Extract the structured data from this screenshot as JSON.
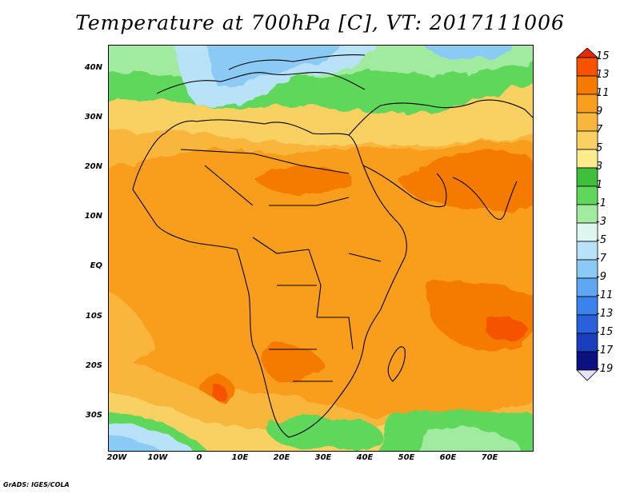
{
  "title": "Temperature at 700hPa [C], VT: 2017111006",
  "credit": "GrADS: IGES/COLA",
  "lat_labels": [
    "40N",
    "30N",
    "20N",
    "10N",
    "EQ",
    "10S",
    "20S",
    "30S"
  ],
  "lon_labels": [
    "20W",
    "10W",
    "0",
    "10E",
    "20E",
    "30E",
    "40E",
    "50E",
    "60E",
    "70E"
  ],
  "colorbar": {
    "labels": [
      "15",
      "13",
      "11",
      "9",
      "7",
      "5",
      "3",
      "1",
      "-1",
      "-3",
      "-5",
      "-7",
      "-9",
      "-11",
      "-13",
      "-15",
      "-17",
      "-19"
    ],
    "colors": [
      "#e62a00",
      "#f65200",
      "#f57a00",
      "#f99e1e",
      "#f9b63e",
      "#f8d162",
      "#fbec90",
      "#3fbf3b",
      "#5fd75a",
      "#a0eba0",
      "#dff6f0",
      "#b8e2f8",
      "#8ccaf6",
      "#5fa6f3",
      "#3a82ee",
      "#2a60dc",
      "#1a3fbd",
      "#0a1280",
      "#e7e4ff"
    ]
  },
  "map": {
    "variable": "Temperature at 700hPa",
    "units": "C",
    "valid_time": "2017111006",
    "lon_range": [
      -23,
      80
    ],
    "lat_range": [
      -36,
      45
    ]
  }
}
